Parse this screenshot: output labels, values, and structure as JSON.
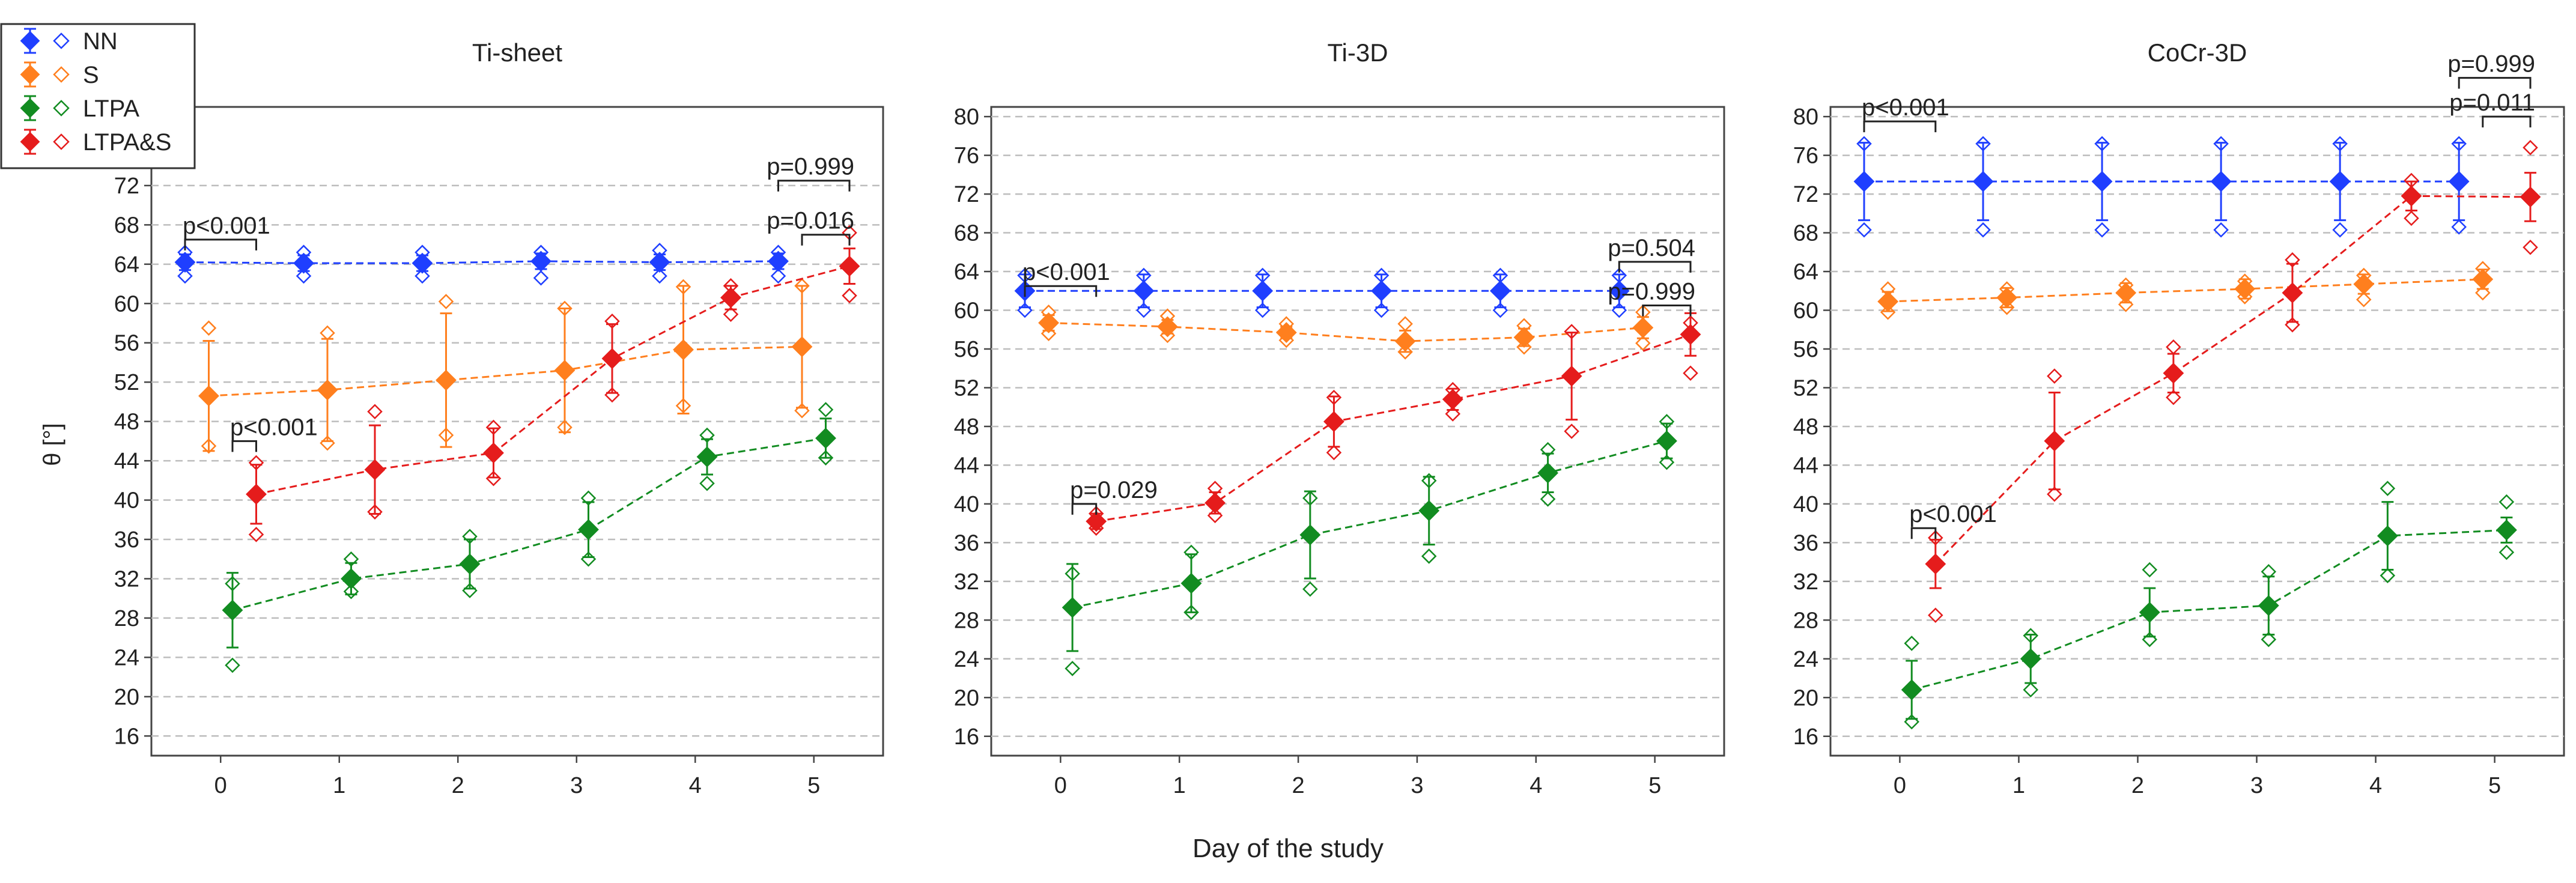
{
  "figure": {
    "xlabel": "Day of the study",
    "ylabel": "θ [°]"
  },
  "legend": {
    "placement": "top-left",
    "items": [
      {
        "label": "NN",
        "color": "#1f3fff"
      },
      {
        "label": "S",
        "color": "#ff7f1e"
      },
      {
        "label": "LTPA",
        "color": "#128c21"
      },
      {
        "label": "LTPA&S",
        "color": "#e51c1c"
      }
    ]
  },
  "chart_data": [
    {
      "type": "scatter",
      "title": "Ti-sheet",
      "xlabel": "Day of the study",
      "ylabel": "θ [°]",
      "x_ticks": [
        0,
        1,
        2,
        3,
        4,
        5
      ],
      "y_ticks": [
        16,
        20,
        24,
        28,
        32,
        36,
        40,
        44,
        48,
        52,
        56,
        60,
        64,
        68,
        72
      ],
      "xlim": [
        -0.3,
        5.3
      ],
      "ylim": [
        14,
        80
      ],
      "grid": true,
      "series": [
        {
          "name": "NN",
          "color": "#1f3fff",
          "offset": -0.3,
          "x": [
            0,
            1,
            2,
            3,
            4,
            5
          ],
          "mean": [
            64.2,
            64.1,
            64.1,
            64.3,
            64.2,
            64.3
          ],
          "err": [
            0.8,
            0.8,
            0.8,
            0.8,
            0.8,
            0.8
          ],
          "points": [
            [
              62.8,
              65.2
            ],
            [
              62.8,
              65.2
            ],
            [
              62.8,
              65.2
            ],
            [
              62.6,
              65.2
            ],
            [
              62.8,
              65.4
            ],
            [
              62.8,
              65.2
            ]
          ]
        },
        {
          "name": "S",
          "color": "#ff7f1e",
          "offset": -0.1,
          "x": [
            0,
            1,
            2,
            3,
            4,
            5
          ],
          "mean": [
            50.6,
            51.2,
            52.2,
            53.2,
            55.3,
            55.6
          ],
          "err": [
            5.6,
            5.2,
            6.8,
            6.3,
            6.5,
            6.2
          ],
          "points": [
            [
              45.5,
              57.5
            ],
            [
              45.8,
              57
            ],
            [
              46.6,
              60.2
            ],
            [
              47.4,
              59.5
            ],
            [
              49.6,
              61.7
            ],
            [
              49.1,
              61.8
            ]
          ]
        },
        {
          "name": "LTPA",
          "color": "#128c21",
          "offset": 0.1,
          "x": [
            0,
            1,
            2,
            3,
            4,
            5
          ],
          "mean": [
            28.8,
            32.0,
            33.5,
            37.0,
            44.4,
            46.3
          ],
          "err": [
            3.8,
            1.6,
            2.5,
            2.8,
            1.8,
            2.0
          ],
          "points": [
            [
              23.2,
              31.5
            ],
            [
              30.7,
              34
            ],
            [
              30.8,
              36.3
            ],
            [
              34,
              40.2
            ],
            [
              41.7,
              46.6
            ],
            [
              44.3,
              49.2
            ]
          ]
        },
        {
          "name": "LTPA&S",
          "color": "#e51c1c",
          "offset": 0.3,
          "x": [
            0,
            1,
            2,
            3,
            4,
            5
          ],
          "mean": [
            40.6,
            43.1,
            44.8,
            54.4,
            60.6,
            63.8
          ],
          "err": [
            3.0,
            4.5,
            2.5,
            3.5,
            1.2,
            1.8
          ],
          "points": [
            [
              36.5,
              43.8
            ],
            [
              38.8,
              49
            ],
            [
              42.2,
              47.4
            ],
            [
              50.7,
              58.2
            ],
            [
              58.9,
              61.8
            ],
            [
              60.8,
              67.2
            ]
          ]
        }
      ],
      "annotations": [
        {
          "label": "p<0.001",
          "x1": -0.3,
          "x2": 0.3,
          "y": 66.5
        },
        {
          "label": "p<0.001",
          "x1": 0.1,
          "x2": 0.3,
          "y": 46.0
        },
        {
          "label": "p=0.016",
          "x1": 4.9,
          "x2": 5.3,
          "y": 67.0
        },
        {
          "label": "p=0.999",
          "x1": 4.7,
          "x2": 5.3,
          "y": 72.5
        }
      ]
    },
    {
      "type": "scatter",
      "title": "Ti-3D",
      "xlabel": "Day of the study",
      "ylabel": "",
      "x_ticks": [
        0,
        1,
        2,
        3,
        4,
        5
      ],
      "y_ticks": [
        16,
        20,
        24,
        28,
        32,
        36,
        40,
        44,
        48,
        52,
        56,
        60,
        64,
        68,
        72,
        76,
        80
      ],
      "xlim": [
        -0.3,
        5.3
      ],
      "ylim": [
        14,
        81
      ],
      "grid": true,
      "series": [
        {
          "name": "NN",
          "color": "#1f3fff",
          "offset": -0.3,
          "x": [
            0,
            1,
            2,
            3,
            4,
            5
          ],
          "mean": [
            62.0,
            62.0,
            62.0,
            62.0,
            62.0,
            62.0
          ],
          "err": [
            1.7,
            1.7,
            1.7,
            1.7,
            1.7,
            1.7
          ],
          "points": [
            [
              60,
              63.6
            ],
            [
              60,
              63.6
            ],
            [
              60,
              63.6
            ],
            [
              60,
              63.6
            ],
            [
              60,
              63.6
            ],
            [
              60,
              63.6
            ]
          ]
        },
        {
          "name": "S",
          "color": "#ff7f1e",
          "offset": -0.1,
          "x": [
            0,
            1,
            2,
            3,
            4,
            5
          ],
          "mean": [
            58.7,
            58.3,
            57.7,
            56.8,
            57.2,
            58.2
          ],
          "err": [
            0.8,
            0.7,
            0.6,
            1.1,
            0.9,
            1.1
          ],
          "points": [
            [
              57.6,
              59.8
            ],
            [
              57.4,
              59.4
            ],
            [
              56.9,
              58.6
            ],
            [
              55.7,
              58.6
            ],
            [
              56.2,
              58.4
            ],
            [
              56.6,
              59.8
            ]
          ]
        },
        {
          "name": "LTPA",
          "color": "#128c21",
          "offset": 0.1,
          "x": [
            0,
            1,
            2,
            3,
            4,
            5
          ],
          "mean": [
            29.3,
            31.8,
            36.8,
            39.3,
            43.2,
            46.5
          ],
          "err": [
            4.5,
            3.0,
            4.5,
            3.5,
            2.0,
            1.8
          ],
          "points": [
            [
              23,
              32.8
            ],
            [
              28.8,
              35
            ],
            [
              31.2,
              40.6
            ],
            [
              34.6,
              42.4
            ],
            [
              40.5,
              45.6
            ],
            [
              44.3,
              48.5
            ]
          ]
        },
        {
          "name": "LTPA&S",
          "color": "#e51c1c",
          "offset": 0.3,
          "x": [
            0,
            1,
            2,
            3,
            4,
            5
          ],
          "mean": [
            38.2,
            40.1,
            48.5,
            50.8,
            53.2,
            57.5
          ],
          "err": [
            0.8,
            1.1,
            2.6,
            1.1,
            4.5,
            2.2
          ],
          "points": [
            [
              37.5,
              39
            ],
            [
              38.8,
              41.6
            ],
            [
              45.3,
              51
            ],
            [
              49.3,
              51.8
            ],
            [
              47.5,
              57.8
            ],
            [
              53.5,
              58.7
            ]
          ]
        }
      ],
      "annotations": [
        {
          "label": "p<0.001",
          "x1": -0.3,
          "x2": 0.3,
          "y": 62.5
        },
        {
          "label": "p=0.029",
          "x1": 0.1,
          "x2": 0.3,
          "y": 40.0
        },
        {
          "label": "p=0.999",
          "x1": 4.9,
          "x2": 5.3,
          "y": 60.5
        },
        {
          "label": "p=0.504",
          "x1": 4.7,
          "x2": 5.3,
          "y": 65.0
        }
      ]
    },
    {
      "type": "scatter",
      "title": "CoCr-3D",
      "xlabel": "Day of the study",
      "ylabel": "",
      "x_ticks": [
        0,
        1,
        2,
        3,
        4,
        5
      ],
      "y_ticks": [
        16,
        20,
        24,
        28,
        32,
        36,
        40,
        44,
        48,
        52,
        56,
        60,
        64,
        68,
        72,
        76,
        80
      ],
      "xlim": [
        -0.3,
        5.3
      ],
      "ylim": [
        14,
        81
      ],
      "grid": true,
      "series": [
        {
          "name": "NN",
          "color": "#1f3fff",
          "offset": -0.3,
          "x": [
            0,
            1,
            2,
            3,
            4,
            5
          ],
          "mean": [
            73.3,
            73.3,
            73.3,
            73.3,
            73.3,
            73.3
          ],
          "err": [
            4.0,
            4.0,
            4.0,
            4.0,
            4.0,
            4.0
          ],
          "points": [
            [
              68.3,
              77.2
            ],
            [
              68.3,
              77.2
            ],
            [
              68.3,
              77.2
            ],
            [
              68.3,
              77.2
            ],
            [
              68.3,
              77.2
            ],
            [
              68.6,
              77.2
            ]
          ]
        },
        {
          "name": "S",
          "color": "#ff7f1e",
          "offset": -0.1,
          "x": [
            0,
            1,
            2,
            3,
            4,
            5
          ],
          "mean": [
            60.9,
            61.3,
            61.8,
            62.2,
            62.7,
            63.2
          ],
          "err": [
            1.0,
            1.0,
            1.0,
            1.0,
            1.0,
            1.0
          ],
          "points": [
            [
              59.8,
              62.2
            ],
            [
              60.3,
              62.2
            ],
            [
              60.6,
              62.6
            ],
            [
              61.4,
              63
            ],
            [
              61.1,
              63.6
            ],
            [
              61.8,
              64.3
            ]
          ]
        },
        {
          "name": "LTPA",
          "color": "#128c21",
          "offset": 0.1,
          "x": [
            0,
            1,
            2,
            3,
            4,
            5
          ],
          "mean": [
            20.8,
            24.0,
            28.8,
            29.5,
            36.7,
            37.3
          ],
          "err": [
            3.0,
            2.5,
            2.5,
            3.0,
            3.5,
            1.3
          ],
          "points": [
            [
              17.5,
              25.6
            ],
            [
              20.8,
              26.4
            ],
            [
              26,
              33.2
            ],
            [
              26,
              33
            ],
            [
              32.6,
              41.6
            ],
            [
              35,
              40.2
            ]
          ]
        },
        {
          "name": "LTPA&S",
          "color": "#e51c1c",
          "offset": 0.3,
          "x": [
            0,
            1,
            2,
            3,
            4,
            5
          ],
          "mean": [
            33.8,
            46.5,
            53.5,
            61.8,
            71.8,
            71.7
          ],
          "err": [
            2.5,
            5.0,
            2.0,
            3.0,
            1.5,
            2.5
          ],
          "points": [
            [
              28.5,
              36.5
            ],
            [
              41,
              53.2
            ],
            [
              51,
              56.2
            ],
            [
              58.5,
              65.2
            ],
            [
              69.5,
              73.4
            ],
            [
              66.5,
              76.8
            ]
          ]
        }
      ],
      "annotations": [
        {
          "label": "p<0.001",
          "x1": -0.3,
          "x2": 0.3,
          "y": 79.5
        },
        {
          "label": "p<0.001",
          "x1": 0.1,
          "x2": 0.3,
          "y": 37.5
        },
        {
          "label": "p=0.011",
          "x1": 4.9,
          "x2": 5.3,
          "y": 80.0
        },
        {
          "label": "p=0.999",
          "x1": 4.7,
          "x2": 5.3,
          "y": 84.0
        }
      ]
    }
  ]
}
